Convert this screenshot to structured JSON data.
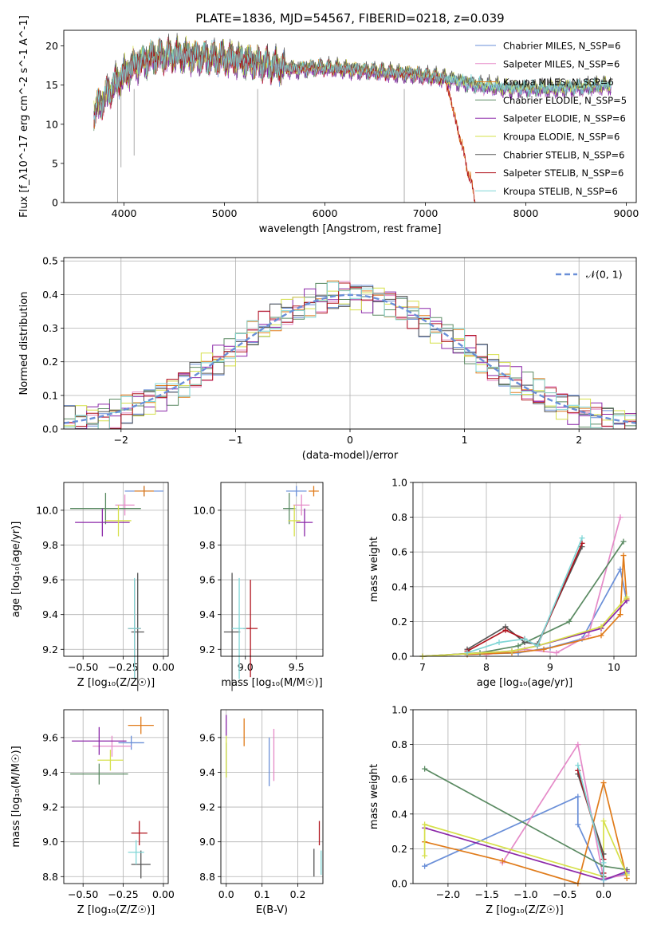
{
  "figure": {
    "title": "PLATE=1836, MJD=54567, FIBERID=0218, z=0.039"
  },
  "colors": {
    "Chabrier MILES": "#6a8fd8",
    "Salpeter MILES": "#e58ac8",
    "Kroupa MILES": "#e07b1a",
    "Chabrier ELODIE": "#5a8a62",
    "Salpeter ELODIE": "#8b27a8",
    "Kroupa ELODIE": "#d6e04a",
    "Chabrier STELIB": "#555555",
    "Salpeter STELIB": "#b0141e",
    "Kroupa STELIB": "#7fd6d6"
  },
  "chart_data": [
    {
      "type": "line",
      "panel": "spectrum",
      "title": "PLATE=1836, MJD=54567, FIBERID=0218, z=0.039",
      "xlabel": "wavelength [Angstrom, rest frame]",
      "ylabel": "Flux [f_λ10^-17 erg cm^-2 s^-1 A^-1]",
      "xlim": [
        3400,
        9100
      ],
      "ylim": [
        0,
        22
      ],
      "xticks": [
        "4000",
        "5000",
        "6000",
        "7000",
        "8000",
        "9000"
      ],
      "yticks": [
        "0",
        "5",
        "10",
        "15",
        "20"
      ],
      "grid": false,
      "legend_position": "top-right",
      "x": [
        3700,
        3900,
        4100,
        4300,
        4500,
        4800,
        5100,
        5400,
        5700,
        6000,
        6300,
        6600,
        6900,
        7200,
        7500,
        7800,
        8100,
        8400,
        8700,
        8850
      ],
      "series": [
        {
          "name": "Chabrier MILES, N_SSP=6",
          "values": [
            11.5,
            15.0,
            17.5,
            18.5,
            18.8,
            18.5,
            18.3,
            17.6,
            17.0,
            17.2,
            16.9,
            16.6,
            16.3,
            15.8,
            15.0,
            14.6,
            14.5,
            14.6,
            14.8,
            15.0
          ]
        },
        {
          "name": "Salpeter MILES, N_SSP=6",
          "values": [
            11.4,
            14.9,
            17.4,
            18.4,
            18.7,
            18.4,
            18.2,
            17.5,
            16.9,
            17.1,
            16.8,
            16.5,
            16.2,
            15.7,
            14.9,
            14.5,
            14.4,
            14.5,
            14.7,
            14.9
          ]
        },
        {
          "name": "Kroupa MILES, N_SSP=6",
          "values": [
            11.6,
            15.1,
            17.6,
            18.6,
            18.9,
            18.6,
            18.4,
            17.7,
            17.1,
            17.3,
            17.0,
            16.7,
            16.4,
            15.9,
            0.2,
            null,
            null,
            null,
            null,
            null
          ]
        },
        {
          "name": "Chabrier ELODIE, N_SSP=5",
          "values": [
            11.3,
            14.8,
            17.3,
            18.3,
            18.6,
            18.3,
            18.1,
            17.4,
            16.8,
            17.0,
            16.7,
            16.4,
            16.1,
            15.6,
            14.8,
            14.4,
            14.3,
            14.4,
            14.6,
            14.8
          ]
        },
        {
          "name": "Salpeter ELODIE, N_SSP=6",
          "values": [
            11.2,
            14.7,
            17.2,
            18.2,
            18.5,
            18.2,
            18.0,
            17.3,
            16.7,
            16.9,
            16.6,
            16.3,
            16.0,
            15.5,
            14.7,
            14.3,
            14.2,
            14.3,
            14.5,
            14.7
          ]
        },
        {
          "name": "Kroupa ELODIE, N_SSP=6",
          "values": [
            11.7,
            15.2,
            17.8,
            18.8,
            19.0,
            18.7,
            18.5,
            17.8,
            17.2,
            17.4,
            17.1,
            16.8,
            16.5,
            16.0,
            15.2,
            14.8,
            14.7,
            14.8,
            15.0,
            15.2
          ]
        },
        {
          "name": "Chabrier STELIB, N_SSP=6",
          "values": [
            11.8,
            15.4,
            18.0,
            19.0,
            19.2,
            18.9,
            18.7,
            18.0,
            17.4,
            17.6,
            17.3,
            17.0,
            16.7,
            16.2,
            15.4,
            15.0,
            14.9,
            15.0,
            15.2,
            15.4
          ]
        },
        {
          "name": "Salpeter STELIB, N_SSP=6",
          "values": [
            11.5,
            15.0,
            17.5,
            18.5,
            18.8,
            18.5,
            18.3,
            17.6,
            17.0,
            17.2,
            16.9,
            16.6,
            16.3,
            15.8,
            0.0,
            null,
            null,
            null,
            null,
            null
          ]
        },
        {
          "name": "Kroupa STELIB, N_SSP=6",
          "values": [
            11.6,
            15.2,
            17.7,
            18.7,
            18.9,
            18.6,
            18.4,
            17.7,
            17.1,
            17.3,
            17.0,
            16.7,
            16.4,
            15.9,
            15.1,
            14.7,
            14.6,
            14.7,
            14.9,
            15.1
          ]
        }
      ]
    },
    {
      "type": "line",
      "panel": "residuals",
      "xlabel": "(data-model)/error",
      "ylabel": "Normed distribution",
      "xlim": [
        -2.5,
        2.5
      ],
      "ylim": [
        0,
        0.51
      ],
      "xticks": [
        "−2",
        "−1",
        "0",
        "1",
        "2"
      ],
      "yticks": [
        "0.0",
        "0.1",
        "0.2",
        "0.3",
        "0.4",
        "0.5"
      ],
      "grid": true,
      "legend_position": "top-right",
      "legend_label": "𝒩(0, 1)",
      "curve": "normal pdf, mean 0, sigma 1",
      "bin_width": 0.1
    },
    {
      "type": "scatter",
      "panel": "age-vs-metallicity",
      "xlabel": "Z [log₁₀(Z/Z☉)]",
      "ylabel": "age  [log₁₀(age/yr)]",
      "xlim": [
        -0.62,
        0.03
      ],
      "ylim": [
        9.16,
        10.16
      ],
      "xticks": [
        "−0.50",
        "−0.25",
        "0.00"
      ],
      "yticks": [
        "9.2",
        "9.4",
        "9.6",
        "9.8",
        "10.0"
      ],
      "grid": true,
      "points": [
        {
          "series": "Chabrier MILES",
          "x": -0.12,
          "y": 10.11,
          "xerr": 0.12,
          "yerr": 0.03
        },
        {
          "series": "Salpeter MILES",
          "x": -0.24,
          "y": 10.03,
          "xerr": 0.06,
          "yerr": 0.06
        },
        {
          "series": "Kroupa MILES",
          "x": -0.12,
          "y": 10.11,
          "xerr": 0.06,
          "yerr": 0.03
        },
        {
          "series": "Chabrier ELODIE",
          "x": -0.36,
          "y": 10.01,
          "xerr": 0.22,
          "yerr": 0.09
        },
        {
          "series": "Salpeter ELODIE",
          "x": -0.38,
          "y": 9.93,
          "xerr": 0.17,
          "yerr": 0.08
        },
        {
          "series": "Kroupa ELODIE",
          "x": -0.28,
          "y": 9.94,
          "xerr": 0.08,
          "yerr": 0.09
        },
        {
          "series": "Chabrier STELIB",
          "x": -0.16,
          "y": 9.3,
          "xerr": 0.04,
          "yerr": 0.34
        },
        {
          "series": "Salpeter STELIB",
          "x": -0.18,
          "y": 9.32,
          "xerr": 0.04,
          "yerr": 0.28
        },
        {
          "series": "Kroupa STELIB",
          "x": -0.18,
          "y": 9.32,
          "xerr": 0.04,
          "yerr": 0.29
        }
      ]
    },
    {
      "type": "scatter",
      "panel": "age-vs-mass",
      "xlabel": "mass [log₁₀(M/M☉)]",
      "ylabel": "",
      "xlim": [
        8.76,
        9.76
      ],
      "ylim": [
        9.16,
        10.16
      ],
      "xticks": [
        "9.0",
        "9.5"
      ],
      "yticks": [
        "9.2",
        "9.4",
        "9.6",
        "9.8",
        "10.0"
      ],
      "grid": true,
      "points": [
        {
          "series": "Chabrier MILES",
          "x": 9.5,
          "y": 10.11,
          "xerr": 0.1,
          "yerr": 0.03
        },
        {
          "series": "Salpeter MILES",
          "x": 9.55,
          "y": 10.03,
          "xerr": 0.08,
          "yerr": 0.06
        },
        {
          "series": "Kroupa MILES",
          "x": 9.67,
          "y": 10.11,
          "xerr": 0.05,
          "yerr": 0.03
        },
        {
          "series": "Chabrier ELODIE",
          "x": 9.43,
          "y": 10.01,
          "xerr": 0.06,
          "yerr": 0.09
        },
        {
          "series": "Salpeter ELODIE",
          "x": 9.58,
          "y": 9.93,
          "xerr": 0.08,
          "yerr": 0.08
        },
        {
          "series": "Kroupa ELODIE",
          "x": 9.48,
          "y": 9.94,
          "xerr": 0.06,
          "yerr": 0.09
        },
        {
          "series": "Chabrier STELIB",
          "x": 8.87,
          "y": 9.3,
          "xerr": 0.08,
          "yerr": 0.34
        },
        {
          "series": "Salpeter STELIB",
          "x": 9.05,
          "y": 9.32,
          "xerr": 0.07,
          "yerr": 0.28
        },
        {
          "series": "Kroupa STELIB",
          "x": 8.94,
          "y": 9.32,
          "xerr": 0.07,
          "yerr": 0.29
        }
      ]
    },
    {
      "type": "line",
      "panel": "mass-weight-vs-age",
      "xlabel": "age  [log₁₀(age/yr)]",
      "ylabel": "mass weight",
      "xlim": [
        6.85,
        10.35
      ],
      "ylim": [
        0,
        1
      ],
      "xticks": [
        "7",
        "8",
        "9",
        "10"
      ],
      "yticks": [
        "0.0",
        "0.2",
        "0.4",
        "0.6",
        "0.8",
        "1.0"
      ],
      "grid": true,
      "series": [
        {
          "name": "Chabrier MILES",
          "x": [
            7.7,
            8.5,
            9.0,
            9.5,
            10.1,
            10.2
          ],
          "values": [
            0.01,
            0.02,
            0.05,
            0.1,
            0.5,
            0.32
          ]
        },
        {
          "name": "Salpeter MILES",
          "x": [
            8.0,
            8.6,
            9.1,
            9.6,
            10.1
          ],
          "values": [
            0.01,
            0.04,
            0.02,
            0.12,
            0.8
          ]
        },
        {
          "name": "Kroupa MILES",
          "x": [
            7.7,
            8.4,
            8.9,
            9.8,
            10.1,
            10.15,
            10.2
          ],
          "values": [
            0.01,
            0.02,
            0.04,
            0.12,
            0.24,
            0.58,
            0.33
          ]
        },
        {
          "name": "Chabrier ELODIE",
          "x": [
            7.0,
            7.9,
            8.5,
            9.3,
            10.15
          ],
          "values": [
            0.0,
            0.02,
            0.06,
            0.2,
            0.66
          ]
        },
        {
          "name": "Salpeter ELODIE",
          "x": [
            7.0,
            8.4,
            8.8,
            9.8,
            10.2
          ],
          "values": [
            0.0,
            0.03,
            0.06,
            0.16,
            0.32
          ]
        },
        {
          "name": "Kroupa ELODIE",
          "x": [
            7.0,
            8.4,
            8.8,
            9.8,
            10.2
          ],
          "values": [
            0.0,
            0.03,
            0.06,
            0.17,
            0.34
          ]
        },
        {
          "name": "Chabrier STELIB",
          "x": [
            7.7,
            8.3,
            8.6,
            8.8,
            9.5
          ],
          "values": [
            0.04,
            0.17,
            0.08,
            0.07,
            0.63
          ]
        },
        {
          "name": "Salpeter STELIB",
          "x": [
            7.7,
            8.3,
            8.6,
            8.8,
            9.5
          ],
          "values": [
            0.03,
            0.15,
            0.1,
            0.06,
            0.65
          ]
        },
        {
          "name": "Kroupa STELIB",
          "x": [
            7.7,
            8.2,
            8.6,
            8.8,
            9.5
          ],
          "values": [
            0.02,
            0.08,
            0.1,
            0.06,
            0.68
          ]
        }
      ]
    },
    {
      "type": "scatter",
      "panel": "mass-vs-metallicity",
      "xlabel": "Z [log₁₀(Z/Z☉)]",
      "ylabel": "mass [log₁₀(M/M☉)]",
      "xlim": [
        -0.62,
        0.03
      ],
      "ylim": [
        8.76,
        9.76
      ],
      "xticks": [
        "−0.50",
        "−0.25",
        "0.00"
      ],
      "yticks": [
        "8.8",
        "9.0",
        "9.2",
        "9.4",
        "9.6"
      ],
      "grid": true,
      "points": [
        {
          "series": "Chabrier MILES",
          "x": -0.2,
          "y": 9.57,
          "xerr": 0.08,
          "yerr": 0.04
        },
        {
          "series": "Salpeter MILES",
          "x": -0.32,
          "y": 9.55,
          "xerr": 0.12,
          "yerr": 0.06
        },
        {
          "series": "Kroupa MILES",
          "x": -0.14,
          "y": 9.67,
          "xerr": 0.08,
          "yerr": 0.05
        },
        {
          "series": "Chabrier ELODIE",
          "x": -0.4,
          "y": 9.39,
          "xerr": 0.18,
          "yerr": 0.06
        },
        {
          "series": "Salpeter ELODIE",
          "x": -0.4,
          "y": 9.58,
          "xerr": 0.17,
          "yerr": 0.08
        },
        {
          "series": "Kroupa ELODIE",
          "x": -0.33,
          "y": 9.47,
          "xerr": 0.08,
          "yerr": 0.06
        },
        {
          "series": "Chabrier STELIB",
          "x": -0.14,
          "y": 8.87,
          "xerr": 0.06,
          "yerr": 0.08
        },
        {
          "series": "Salpeter STELIB",
          "x": -0.15,
          "y": 9.05,
          "xerr": 0.05,
          "yerr": 0.07
        },
        {
          "series": "Kroupa STELIB",
          "x": -0.17,
          "y": 8.94,
          "xerr": 0.05,
          "yerr": 0.07
        }
      ]
    },
    {
      "type": "scatter",
      "panel": "mass-vs-extinction",
      "xlabel": "E(B-V)",
      "ylabel": "",
      "xlim": [
        -0.015,
        0.27
      ],
      "ylim": [
        8.76,
        9.76
      ],
      "xticks": [
        "0.0",
        "0.1",
        "0.2"
      ],
      "yticks": [
        "8.8",
        "9.0",
        "9.2",
        "9.4",
        "9.6"
      ],
      "grid": true,
      "points": [
        {
          "series": "Chabrier MILES",
          "x": 0.12,
          "y": 9.46,
          "yerr": 0.14
        },
        {
          "series": "Salpeter MILES",
          "x": 0.133,
          "y": 9.5,
          "yerr": 0.15
        },
        {
          "series": "Kroupa MILES",
          "x": 0.05,
          "y": 9.63,
          "yerr": 0.08
        },
        {
          "series": "Chabrier ELODIE",
          "x": 0.0,
          "y": 9.47,
          "yerr": 0.1
        },
        {
          "series": "Salpeter ELODIE",
          "x": 0.0,
          "y": 9.67,
          "yerr": 0.06
        },
        {
          "series": "Kroupa ELODIE",
          "x": 0.0,
          "y": 9.49,
          "yerr": 0.12
        },
        {
          "series": "Chabrier STELIB",
          "x": 0.245,
          "y": 8.88,
          "yerr": 0.08
        },
        {
          "series": "Salpeter STELIB",
          "x": 0.26,
          "y": 9.05,
          "yerr": 0.07
        },
        {
          "series": "Kroupa STELIB",
          "x": 0.265,
          "y": 8.88,
          "yerr": 0.07
        }
      ]
    },
    {
      "type": "line",
      "panel": "mass-weight-vs-metallicity",
      "xlabel": "Z [log₁₀(Z/Z☉)]",
      "ylabel": "mass weight",
      "xlim": [
        -2.45,
        0.42
      ],
      "ylim": [
        0,
        1
      ],
      "xticks": [
        "−2.0",
        "−1.5",
        "−1.0",
        "−0.5",
        "0.0"
      ],
      "yticks": [
        "0.0",
        "0.2",
        "0.4",
        "0.6",
        "0.8",
        "1.0"
      ],
      "grid": true,
      "series": [
        {
          "name": "Chabrier MILES",
          "x": [
            -2.3,
            -0.33,
            -0.33,
            0.0,
            0.3
          ],
          "values": [
            0.1,
            0.5,
            0.34,
            0.02,
            0.06
          ]
        },
        {
          "name": "Salpeter MILES",
          "x": [
            -1.3,
            -0.33,
            0.0,
            0.3
          ],
          "values": [
            0.12,
            0.8,
            0.03,
            0.05
          ]
        },
        {
          "name": "Kroupa MILES",
          "x": [
            -2.3,
            -1.3,
            -0.33,
            0.0,
            0.3
          ],
          "values": [
            0.24,
            0.13,
            0.0,
            0.58,
            0.03
          ]
        },
        {
          "name": "Chabrier ELODIE",
          "x": [
            -2.3,
            0.0,
            0.3
          ],
          "values": [
            0.66,
            0.1,
            0.08
          ]
        },
        {
          "name": "Salpeter ELODIE",
          "x": [
            -2.3,
            0.0,
            0.3
          ],
          "values": [
            0.32,
            0.02,
            0.07
          ]
        },
        {
          "name": "Kroupa ELODIE",
          "x": [
            -2.3,
            -2.3,
            0.0,
            0.0,
            0.3
          ],
          "values": [
            0.16,
            0.34,
            0.04,
            0.36,
            0.05
          ]
        },
        {
          "name": "Chabrier STELIB",
          "x": [
            -0.33,
            0.0,
            0.0
          ],
          "values": [
            0.63,
            0.17,
            0.04
          ]
        },
        {
          "name": "Salpeter STELIB",
          "x": [
            -0.33,
            0.0,
            0.0
          ],
          "values": [
            0.65,
            0.14,
            0.06
          ]
        },
        {
          "name": "Kroupa STELIB",
          "x": [
            -0.33,
            0.0,
            0.0
          ],
          "values": [
            0.68,
            0.12,
            0.02
          ]
        }
      ]
    }
  ]
}
